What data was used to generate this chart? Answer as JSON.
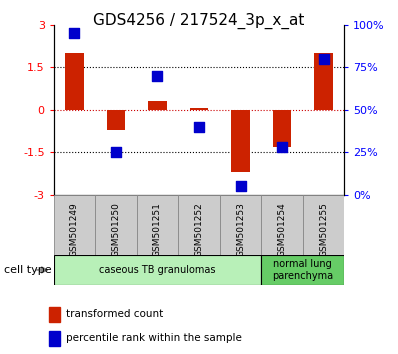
{
  "title": "GDS4256 / 217524_3p_x_at",
  "samples": [
    "GSM501249",
    "GSM501250",
    "GSM501251",
    "GSM501252",
    "GSM501253",
    "GSM501254",
    "GSM501255"
  ],
  "red_bars": [
    2.0,
    -0.7,
    0.3,
    0.05,
    -2.2,
    -1.3,
    2.0
  ],
  "blue_dots_pct": [
    95,
    25,
    70,
    40,
    5,
    28,
    80
  ],
  "ylim_left": [
    -3,
    3
  ],
  "ylim_right": [
    0,
    100
  ],
  "yticks_left": [
    -3,
    -1.5,
    0,
    1.5,
    3
  ],
  "yticks_right": [
    0,
    25,
    50,
    75,
    100
  ],
  "ytick_labels_left": [
    "-3",
    "-1.5",
    "0",
    "1.5",
    "3"
  ],
  "ytick_labels_right": [
    "0%",
    "25%",
    "50%",
    "75%",
    "100%"
  ],
  "groups": [
    {
      "label": "caseous TB granulomas",
      "indices": [
        0,
        1,
        2,
        3,
        4
      ],
      "color": "#b8f0b8"
    },
    {
      "label": "normal lung\nparenchyma",
      "indices": [
        5,
        6
      ],
      "color": "#66cc66"
    }
  ],
  "bar_color": "#cc2200",
  "dot_color": "#0000cc",
  "bar_width": 0.45,
  "dot_size": 45,
  "legend_bar_label": "transformed count",
  "legend_dot_label": "percentile rank within the sample",
  "cell_type_label": "cell type",
  "background_color": "#ffffff",
  "plot_bg": "#ffffff",
  "title_fontsize": 11,
  "tick_fontsize": 8,
  "sample_box_color": "#cccccc",
  "sample_box_edge": "#888888"
}
